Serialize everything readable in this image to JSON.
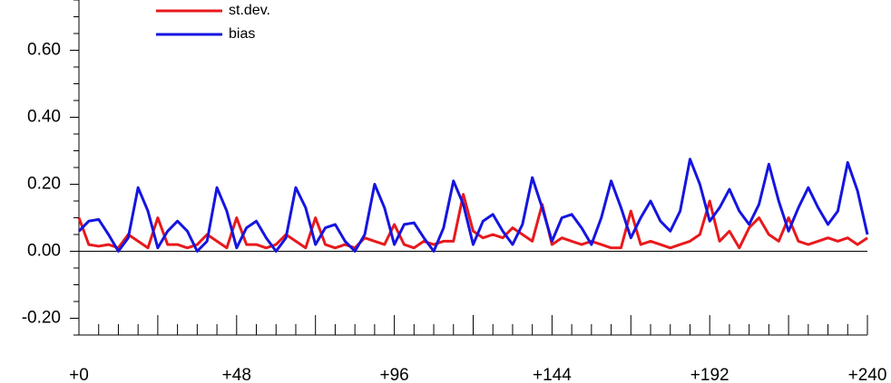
{
  "chart_data": {
    "type": "line",
    "x": [
      0,
      3,
      6,
      9,
      12,
      15,
      18,
      21,
      24,
      27,
      30,
      33,
      36,
      39,
      42,
      45,
      48,
      51,
      54,
      57,
      60,
      63,
      66,
      69,
      72,
      75,
      78,
      81,
      84,
      87,
      90,
      93,
      96,
      99,
      102,
      105,
      108,
      111,
      114,
      117,
      120,
      123,
      126,
      129,
      132,
      135,
      138,
      141,
      144,
      147,
      150,
      153,
      156,
      159,
      162,
      165,
      168,
      171,
      174,
      177,
      180,
      183,
      186,
      189,
      192,
      195,
      198,
      201,
      204,
      207,
      210,
      213,
      216,
      219,
      222,
      225,
      228,
      231,
      234,
      237,
      240
    ],
    "series": [
      {
        "name": "st.dev.",
        "color": "#e8191c",
        "values": [
          0.1,
          0.02,
          0.015,
          0.02,
          0.01,
          0.05,
          0.03,
          0.01,
          0.1,
          0.02,
          0.02,
          0.01,
          0.02,
          0.05,
          0.03,
          0.01,
          0.1,
          0.02,
          0.02,
          0.01,
          0.02,
          0.05,
          0.03,
          0.01,
          0.1,
          0.02,
          0.01,
          0.02,
          0.01,
          0.04,
          0.03,
          0.02,
          0.08,
          0.02,
          0.01,
          0.03,
          0.02,
          0.03,
          0.03,
          0.17,
          0.06,
          0.04,
          0.05,
          0.04,
          0.07,
          0.05,
          0.03,
          0.14,
          0.02,
          0.04,
          0.03,
          0.02,
          0.03,
          0.02,
          0.01,
          0.01,
          0.12,
          0.02,
          0.03,
          0.02,
          0.01,
          0.02,
          0.03,
          0.05,
          0.15,
          0.03,
          0.06,
          0.01,
          0.07,
          0.1,
          0.05,
          0.03,
          0.1,
          0.03,
          0.02,
          0.03,
          0.04,
          0.03,
          0.04,
          0.02,
          0.04
        ]
      },
      {
        "name": "bias",
        "color": "#1515e0",
        "values": [
          0.06,
          0.09,
          0.095,
          0.05,
          0.0,
          0.04,
          0.19,
          0.12,
          0.01,
          0.06,
          0.09,
          0.06,
          0.0,
          0.03,
          0.19,
          0.12,
          0.01,
          0.07,
          0.09,
          0.04,
          0.0,
          0.04,
          0.19,
          0.13,
          0.02,
          0.07,
          0.08,
          0.03,
          0.0,
          0.05,
          0.2,
          0.13,
          0.02,
          0.08,
          0.085,
          0.04,
          0.0,
          0.07,
          0.21,
          0.14,
          0.02,
          0.09,
          0.11,
          0.06,
          0.02,
          0.08,
          0.22,
          0.13,
          0.03,
          0.1,
          0.11,
          0.07,
          0.02,
          0.1,
          0.21,
          0.13,
          0.04,
          0.1,
          0.15,
          0.09,
          0.06,
          0.12,
          0.275,
          0.2,
          0.09,
          0.13,
          0.185,
          0.12,
          0.08,
          0.14,
          0.26,
          0.15,
          0.06,
          0.13,
          0.19,
          0.13,
          0.08,
          0.12,
          0.265,
          0.18,
          0.05
        ]
      }
    ],
    "xlim": [
      0,
      240
    ],
    "xticks": [
      {
        "value": 0,
        "label": "+0"
      },
      {
        "value": 48,
        "label": "+48"
      },
      {
        "value": 96,
        "label": "+96"
      },
      {
        "value": 144,
        "label": "+144"
      },
      {
        "value": 192,
        "label": "+192"
      },
      {
        "value": 240,
        "label": "+240"
      }
    ],
    "xminorticks": [
      6,
      12,
      18,
      24,
      30,
      36,
      42,
      54,
      60,
      66,
      72,
      78,
      84,
      90,
      102,
      108,
      114,
      120,
      126,
      132,
      138,
      150,
      156,
      162,
      168,
      174,
      180,
      186,
      198,
      204,
      210,
      216,
      222,
      228,
      234
    ],
    "ylim": [
      -0.25,
      0.75
    ],
    "yticks": [
      {
        "value": -0.2,
        "label": "-0.20"
      },
      {
        "value": 0,
        "label": "0.00"
      },
      {
        "value": 0.2,
        "label": "0.20"
      },
      {
        "value": 0.4,
        "label": "0.40"
      },
      {
        "value": 0.6,
        "label": "0.60"
      }
    ],
    "yminorticks": [
      -0.25,
      -0.15,
      -0.1,
      -0.05,
      0.05,
      0.1,
      0.15,
      0.25,
      0.3,
      0.35,
      0.45,
      0.5,
      0.55,
      0.65,
      0.7,
      0.75
    ],
    "reference_line": 0
  }
}
